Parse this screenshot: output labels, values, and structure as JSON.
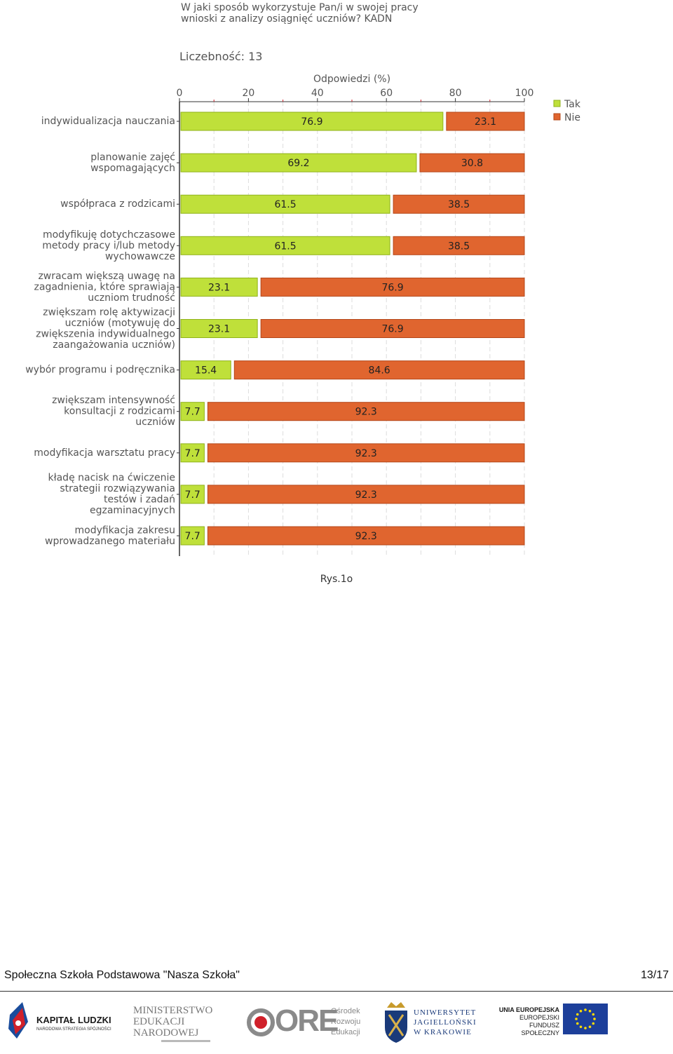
{
  "chart_data": {
    "type": "bar",
    "orientation": "horizontal",
    "stacked": true,
    "title": "W jaki sposób wykorzystuje Pan/i w swojej pracy wnioski z analizy osiągnięć uczniów? KADN",
    "count_label": "Liczebność: 13",
    "xlabel": "Odpowiedzi (%)",
    "xlim": [
      0,
      100
    ],
    "xticks": [
      0,
      20,
      40,
      60,
      80,
      100
    ],
    "grid": true,
    "legend_position": "top-right",
    "categories": [
      [
        "indywidualizacja nauczania"
      ],
      [
        "planowanie zajęć",
        "wspomagających"
      ],
      [
        "współpraca z rodzicami"
      ],
      [
        "modyfikuję dotychczasowe",
        "metody pracy i/lub metody",
        "wychowawcze"
      ],
      [
        "zwracam większą uwagę na",
        "zagadnienia, które sprawiają",
        "uczniom trudność"
      ],
      [
        "zwiększam rolę aktywizacji",
        "uczniów (motywuję do",
        "zwiększenia indywidualnego",
        "zaangażowania uczniów)"
      ],
      [
        "wybór programu i podręcznika"
      ],
      [
        "zwiększam intensywność",
        "konsultacji z rodzicami",
        "uczniów"
      ],
      [
        "modyfikacja warsztatu pracy"
      ],
      [
        "kładę nacisk na ćwiczenie",
        "strategii rozwiązywania",
        "testów i zadań",
        "egzaminacyjnych"
      ],
      [
        "modyfikacja zakresu",
        "wprowadzanego materiału"
      ]
    ],
    "series": [
      {
        "name": "Tak",
        "color": "#bfe03a",
        "stroke": "#8fb21a",
        "values": [
          76.9,
          69.2,
          61.5,
          61.5,
          23.1,
          23.1,
          15.4,
          7.7,
          7.7,
          7.7,
          7.7
        ]
      },
      {
        "name": "Nie",
        "color": "#e0652f",
        "stroke": "#b4471a",
        "values": [
          23.1,
          30.8,
          38.5,
          38.5,
          76.9,
          76.9,
          84.6,
          92.3,
          92.3,
          92.3,
          92.3
        ]
      }
    ]
  },
  "caption": "Rys.1o",
  "footer": {
    "school": "Społeczna Szkoła Podstawowa \"Nasza Szkoła\"",
    "page": "13/17"
  },
  "logos": {
    "kapital_ludzki": {
      "line1": "KAPITAŁ LUDZKI",
      "line2": "NARODOWA STRATEGIA SPÓJNOŚCI"
    },
    "ministerstwo": {
      "line1": "MINISTERSTWO",
      "line2": "EDUKACJI",
      "line3": "NARODOWEJ"
    },
    "ore": {
      "mark": "ORE",
      "line1": "Ośrodek",
      "line2": "Rozwoju",
      "line3": "Edukacji"
    },
    "uj": {
      "line1": "UNIWERSYTET",
      "line2": "JAGIELLOŃSKI",
      "line3": "W KRAKOWIE"
    },
    "ue": {
      "line1": "UNIA EUROPEJSKA",
      "line2": "EUROPEJSKI",
      "line3": "FUNDUSZ SPOŁECZNY"
    }
  }
}
